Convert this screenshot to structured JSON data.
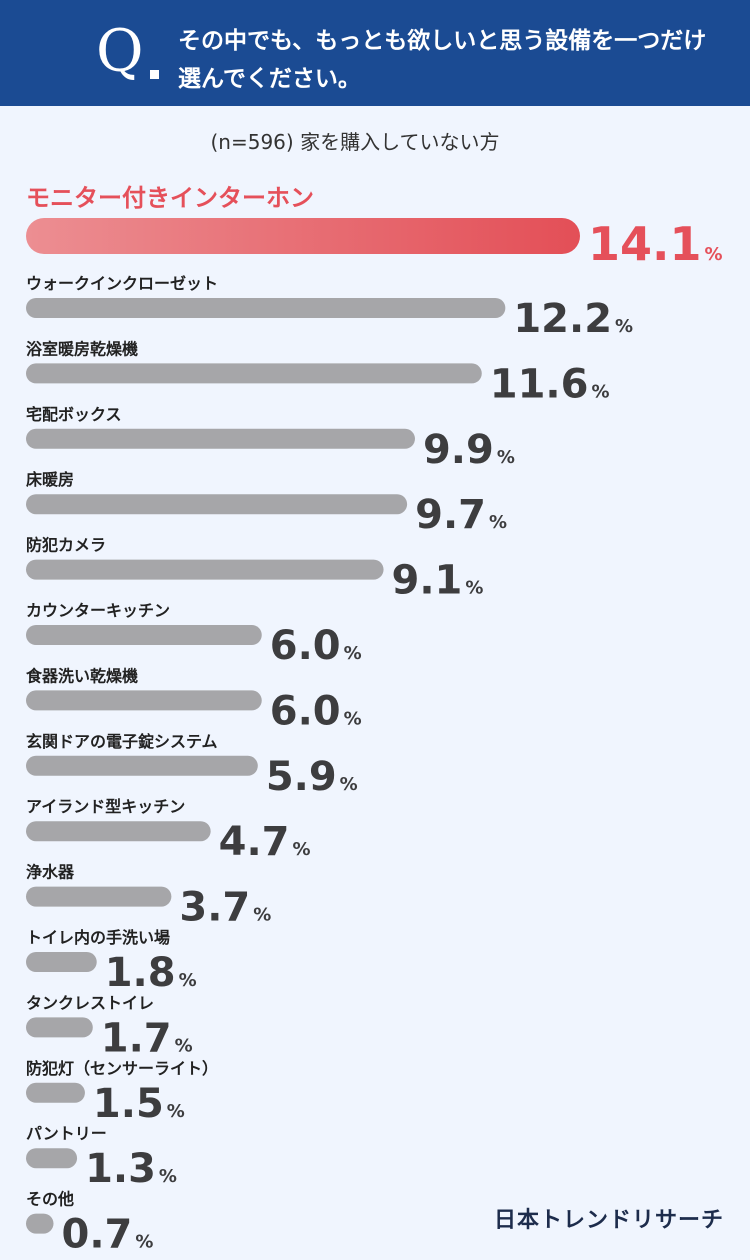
{
  "header": {
    "q_letter": "Q",
    "question": "その中でも、もっとも欲しいと思う設備を一つだけ選んでください。"
  },
  "sample_note": "(n=596) 家を購入していない方",
  "brand": "日本トレンドリサーチ",
  "colors": {
    "header_bg": "#1b4b93",
    "highlight": "#e5505a",
    "bar": "#a6a6a9",
    "value_text": "#3d3d3f"
  },
  "chart_data": {
    "type": "bar",
    "orientation": "horizontal",
    "unit": "%",
    "categories": [
      "モニター付きインターホン",
      "ウォークインクローゼット",
      "浴室暖房乾燥機",
      "宅配ボックス",
      "床暖房",
      "防犯カメラ",
      "カウンターキッチン",
      "食器洗い乾燥機",
      "玄関ドアの電子錠システム",
      "アイランド型キッチン",
      "浄水器",
      "トイレ内の手洗い場",
      "タンクレストイレ",
      "防犯灯（センサーライト）",
      "パントリー",
      "その他"
    ],
    "values": [
      14.1,
      12.2,
      11.6,
      9.9,
      9.7,
      9.1,
      6.0,
      6.0,
      5.9,
      4.7,
      3.7,
      1.8,
      1.7,
      1.5,
      1.3,
      0.7
    ],
    "value_labels": [
      "14.1",
      "12.2",
      "11.6",
      "9.9",
      "9.7",
      "9.1",
      "6.0",
      "6.0",
      "5.9",
      "4.7",
      "3.7",
      "1.8",
      "1.7",
      "1.5",
      "1.3",
      "0.7"
    ],
    "highlight_index": 0
  }
}
